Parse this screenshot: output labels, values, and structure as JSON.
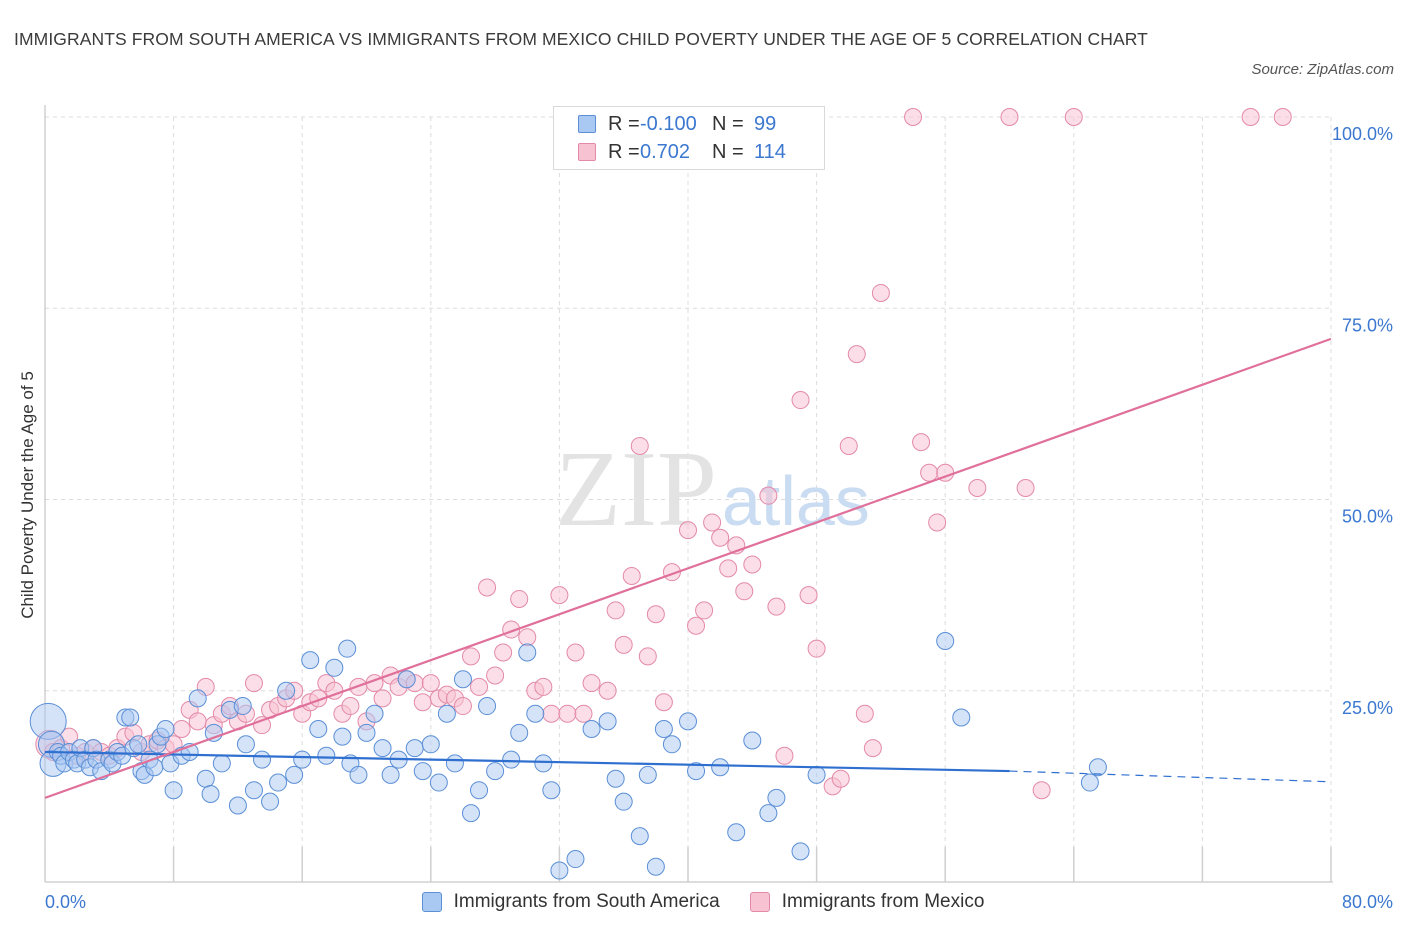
{
  "title": "IMMIGRANTS FROM SOUTH AMERICA VS IMMIGRANTS FROM MEXICO CHILD POVERTY UNDER THE AGE OF 5 CORRELATION CHART",
  "source": "Source: ZipAtlas.com",
  "watermark": {
    "zip": "ZIP",
    "atlas": "atlas"
  },
  "legend_top": {
    "rows": [
      {
        "r_label": "R =",
        "r_value": "-0.100",
        "n_label": "N =",
        "n_value": "99"
      },
      {
        "r_label": "R =",
        "r_value": "0.702",
        "n_label": "N =",
        "n_value": "114"
      }
    ]
  },
  "legend_bottom": {
    "south_america": "Immigrants from South America",
    "mexico": "Immigrants from Mexico"
  },
  "colors": {
    "blue_fill": "#a9c8f2",
    "blue_stroke": "#5b8fd6",
    "blue_line": "#2f6fd0",
    "pink_fill": "#f7c3d3",
    "pink_stroke": "#e48aa8",
    "pink_line": "#e0709a",
    "axis_label": "#3c78d0",
    "grid": "#dcdcdc"
  },
  "chart_data": {
    "type": "scatter",
    "ylabel": "Child Poverty Under the Age of 5",
    "xlim": [
      0,
      80
    ],
    "ylim": [
      0,
      100
    ],
    "x_tick_labels": [
      "0.0%",
      "80.0%"
    ],
    "y_tick_labels": [
      "25.0%",
      "50.0%",
      "75.0%",
      "100.0%"
    ],
    "y_ticks": [
      25,
      50,
      75,
      100
    ],
    "grid": true,
    "legend_position": "top-center",
    "series": [
      {
        "name": "Immigrants from South America",
        "color": "blue",
        "trend": {
          "x0": 0,
          "y0": 17.0,
          "x1": 60,
          "y1": 14.5,
          "dash_to": 80,
          "dash_y": 13.1
        },
        "points": [
          [
            0.2,
            21,
            3
          ],
          [
            0.4,
            18,
            2
          ],
          [
            0.5,
            15.5,
            2
          ],
          [
            0.8,
            17,
            1
          ],
          [
            1,
            16.5,
            1
          ],
          [
            1.2,
            15.5,
            1
          ],
          [
            1.5,
            17,
            1
          ],
          [
            1.8,
            16,
            1
          ],
          [
            2,
            15.5,
            1
          ],
          [
            2.2,
            17.5,
            1
          ],
          [
            2.5,
            16,
            1
          ],
          [
            2.8,
            15,
            1
          ],
          [
            3,
            17.5,
            1
          ],
          [
            3.2,
            16,
            1
          ],
          [
            3.5,
            14.5,
            1
          ],
          [
            4,
            16,
            1
          ],
          [
            4.2,
            15.5,
            1
          ],
          [
            4.5,
            17,
            1
          ],
          [
            4.8,
            16.5,
            1
          ],
          [
            5,
            21.5,
            1
          ],
          [
            5.3,
            21.5,
            1
          ],
          [
            5.5,
            17.5,
            1
          ],
          [
            5.8,
            18,
            1
          ],
          [
            6,
            14.5,
            1
          ],
          [
            6.2,
            14,
            1
          ],
          [
            6.5,
            16,
            1
          ],
          [
            6.8,
            15,
            1
          ],
          [
            7,
            18,
            1
          ],
          [
            7.2,
            19,
            1
          ],
          [
            7.5,
            20,
            1
          ],
          [
            7.8,
            15.5,
            1
          ],
          [
            8,
            12,
            1
          ],
          [
            8.5,
            16.5,
            1
          ],
          [
            9,
            17,
            1
          ],
          [
            9.5,
            24,
            1
          ],
          [
            10,
            13.5,
            1
          ],
          [
            10.3,
            11.5,
            1
          ],
          [
            10.5,
            19.5,
            1
          ],
          [
            11,
            15.5,
            1
          ],
          [
            11.5,
            22.5,
            1
          ],
          [
            12,
            10,
            1
          ],
          [
            12.3,
            23,
            1
          ],
          [
            12.5,
            18,
            1
          ],
          [
            13,
            12,
            1
          ],
          [
            13.5,
            16,
            1
          ],
          [
            14,
            10.5,
            1
          ],
          [
            14.5,
            13,
            1
          ],
          [
            15,
            25,
            1
          ],
          [
            15.5,
            14,
            1
          ],
          [
            16,
            16,
            1
          ],
          [
            16.5,
            29,
            1
          ],
          [
            17,
            20,
            1
          ],
          [
            17.5,
            16.5,
            1
          ],
          [
            18,
            28,
            1
          ],
          [
            18.5,
            19,
            1
          ],
          [
            18.8,
            30.5,
            1
          ],
          [
            19,
            15.5,
            1
          ],
          [
            19.5,
            14,
            1
          ],
          [
            20,
            19.5,
            1
          ],
          [
            20.5,
            22,
            1
          ],
          [
            21,
            17.5,
            1
          ],
          [
            21.5,
            14,
            1
          ],
          [
            22,
            16,
            1
          ],
          [
            22.5,
            26.5,
            1
          ],
          [
            23,
            17.5,
            1
          ],
          [
            23.5,
            14.5,
            1
          ],
          [
            24,
            18,
            1
          ],
          [
            24.5,
            13,
            1
          ],
          [
            25,
            22,
            1
          ],
          [
            25.5,
            15.5,
            1
          ],
          [
            26,
            26.5,
            1
          ],
          [
            26.5,
            9,
            1
          ],
          [
            27,
            12,
            1
          ],
          [
            27.5,
            23,
            1
          ],
          [
            28,
            14.5,
            1
          ],
          [
            29,
            16,
            1
          ],
          [
            29.5,
            19.5,
            1
          ],
          [
            30,
            30,
            1
          ],
          [
            30.5,
            22,
            1
          ],
          [
            31,
            15.5,
            1
          ],
          [
            31.5,
            12,
            1
          ],
          [
            32,
            1.5,
            1
          ],
          [
            33,
            3,
            1
          ],
          [
            34,
            20,
            1
          ],
          [
            35,
            21,
            1
          ],
          [
            35.5,
            13.5,
            1
          ],
          [
            36,
            10.5,
            1
          ],
          [
            37,
            6,
            1
          ],
          [
            37.5,
            14,
            1
          ],
          [
            38,
            2,
            1
          ],
          [
            38.5,
            20,
            1
          ],
          [
            39,
            18,
            1
          ],
          [
            40,
            21,
            1
          ],
          [
            40.5,
            14.5,
            1
          ],
          [
            42,
            15,
            1
          ],
          [
            43,
            6.5,
            1
          ],
          [
            44,
            18.5,
            1
          ],
          [
            45,
            9,
            1
          ],
          [
            45.5,
            11,
            1
          ],
          [
            47,
            4,
            1
          ],
          [
            48,
            14,
            1
          ],
          [
            56,
            31.5,
            1
          ],
          [
            57,
            21.5,
            1
          ],
          [
            65,
            13,
            1
          ],
          [
            65.5,
            15,
            1
          ]
        ]
      },
      {
        "name": "Immigrants from Mexico",
        "color": "pink",
        "trend": {
          "x0": 0,
          "y0": 11,
          "x1": 80,
          "y1": 71
        },
        "points": [
          [
            0.3,
            18,
            2
          ],
          [
            0.5,
            17,
            1
          ],
          [
            1,
            17.5,
            1
          ],
          [
            1.5,
            19,
            1
          ],
          [
            2,
            16.5,
            1
          ],
          [
            2.5,
            17,
            1
          ],
          [
            3,
            17.5,
            1
          ],
          [
            3.5,
            17,
            1
          ],
          [
            4,
            16.5,
            1
          ],
          [
            4.5,
            17.5,
            1
          ],
          [
            5,
            19,
            1
          ],
          [
            5.5,
            19.5,
            1
          ],
          [
            6,
            17,
            1
          ],
          [
            6.5,
            18,
            1
          ],
          [
            7,
            18.5,
            1
          ],
          [
            7.5,
            17.5,
            1
          ],
          [
            8,
            18,
            1
          ],
          [
            8.5,
            20,
            1
          ],
          [
            9,
            22.5,
            1
          ],
          [
            9.5,
            21,
            1
          ],
          [
            10,
            25.5,
            1
          ],
          [
            10.5,
            20.5,
            1
          ],
          [
            11,
            22,
            1
          ],
          [
            11.5,
            23,
            1
          ],
          [
            12,
            21,
            1
          ],
          [
            12.5,
            22,
            1
          ],
          [
            13,
            26,
            1
          ],
          [
            13.5,
            20.5,
            1
          ],
          [
            14,
            22.5,
            1
          ],
          [
            14.5,
            23,
            1
          ],
          [
            15,
            24,
            1
          ],
          [
            15.5,
            25,
            1
          ],
          [
            16,
            22,
            1
          ],
          [
            16.5,
            23.5,
            1
          ],
          [
            17,
            24,
            1
          ],
          [
            17.5,
            26,
            1
          ],
          [
            18,
            25,
            1
          ],
          [
            18.5,
            22,
            1
          ],
          [
            19,
            23,
            1
          ],
          [
            19.5,
            25.5,
            1
          ],
          [
            20,
            21,
            1
          ],
          [
            20.5,
            26,
            1
          ],
          [
            21,
            24,
            1
          ],
          [
            21.5,
            27,
            1
          ],
          [
            22,
            25.5,
            1
          ],
          [
            22.5,
            26.5,
            1
          ],
          [
            23,
            26,
            1
          ],
          [
            23.5,
            23.5,
            1
          ],
          [
            24,
            26,
            1
          ],
          [
            24.5,
            24,
            1
          ],
          [
            25,
            24.5,
            1
          ],
          [
            25.5,
            24,
            1
          ],
          [
            26,
            23,
            1
          ],
          [
            26.5,
            29.5,
            1
          ],
          [
            27,
            25.5,
            1
          ],
          [
            27.5,
            38.5,
            1
          ],
          [
            28,
            27,
            1
          ],
          [
            28.5,
            30,
            1
          ],
          [
            29,
            33,
            1
          ],
          [
            29.5,
            37,
            1
          ],
          [
            30,
            32,
            1
          ],
          [
            30.5,
            25,
            1
          ],
          [
            31,
            25.5,
            1
          ],
          [
            31.5,
            22,
            1
          ],
          [
            32,
            37.5,
            1
          ],
          [
            32.5,
            22,
            1
          ],
          [
            33,
            30,
            1
          ],
          [
            33.5,
            22,
            1
          ],
          [
            34,
            26,
            1
          ],
          [
            35,
            25,
            1
          ],
          [
            35.5,
            35.5,
            1
          ],
          [
            36,
            31,
            1
          ],
          [
            36.5,
            40,
            1
          ],
          [
            37,
            57,
            1
          ],
          [
            37.5,
            29.5,
            1
          ],
          [
            38,
            35,
            1
          ],
          [
            38.5,
            23.5,
            1
          ],
          [
            39,
            40.5,
            1
          ],
          [
            40,
            46,
            1
          ],
          [
            40.5,
            33.5,
            1
          ],
          [
            41,
            35.5,
            1
          ],
          [
            41.5,
            47,
            1
          ],
          [
            42,
            45,
            1
          ],
          [
            42.5,
            41,
            1
          ],
          [
            43,
            44,
            1
          ],
          [
            43.5,
            38,
            1
          ],
          [
            44,
            41.5,
            1
          ],
          [
            45,
            50.5,
            1
          ],
          [
            45.5,
            36,
            1
          ],
          [
            46,
            16.5,
            1
          ],
          [
            47,
            63,
            1
          ],
          [
            47.5,
            37.5,
            1
          ],
          [
            48,
            30.5,
            1
          ],
          [
            49,
            12.5,
            1
          ],
          [
            49.5,
            13.5,
            1
          ],
          [
            50,
            57,
            1
          ],
          [
            50.5,
            69,
            1
          ],
          [
            51,
            22,
            1
          ],
          [
            51.5,
            17.5,
            1
          ],
          [
            52,
            77,
            1
          ],
          [
            54,
            100,
            1
          ],
          [
            54.5,
            57.5,
            1
          ],
          [
            55,
            53.5,
            1
          ],
          [
            55.5,
            47,
            1
          ],
          [
            56,
            53.5,
            1
          ],
          [
            58,
            51.5,
            1
          ],
          [
            60,
            100,
            1
          ],
          [
            61,
            51.5,
            1
          ],
          [
            62,
            12,
            1
          ],
          [
            64,
            100,
            1
          ],
          [
            75,
            100,
            1
          ],
          [
            77,
            100,
            1
          ]
        ]
      }
    ]
  }
}
